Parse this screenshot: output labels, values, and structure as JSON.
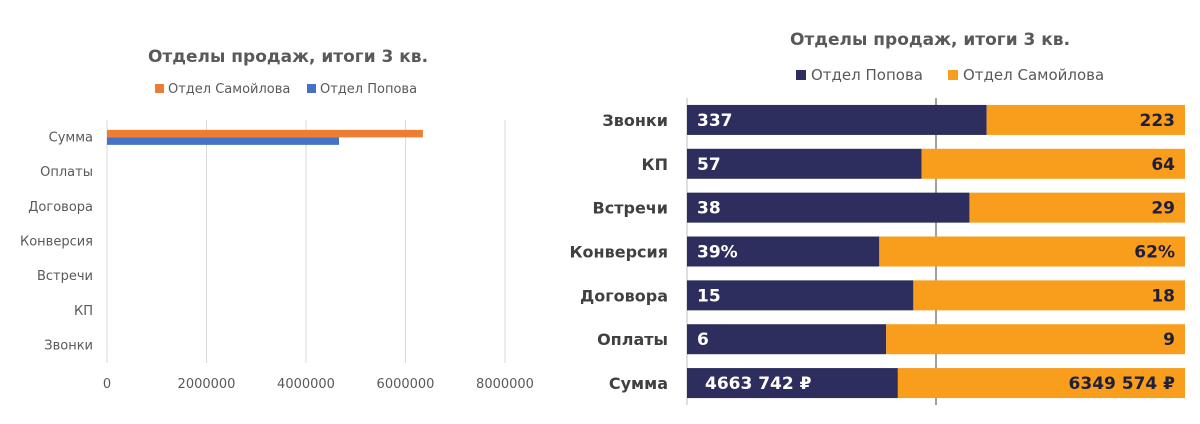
{
  "chart_data": [
    {
      "type": "bar",
      "orientation": "horizontal",
      "title": "Отделы продаж, итоги 3 кв.",
      "categories": [
        "Звонки",
        "КП",
        "Встречи",
        "Конверсия",
        "Договора",
        "Оплаты",
        "Сумма"
      ],
      "series": [
        {
          "name": "Отдел Самойлова",
          "color": "#ED7D31",
          "values": [
            223,
            64,
            29,
            0.62,
            18,
            9,
            6349574
          ]
        },
        {
          "name": "Отдел Попова",
          "color": "#4472C4",
          "values": [
            337,
            57,
            38,
            0.39,
            15,
            6,
            4663742
          ]
        }
      ],
      "legend_order": [
        "Отдел Самойлова",
        "Отдел Попова"
      ],
      "x_ticks": [
        "0",
        "2000000",
        "4000000",
        "6000000",
        "8000000"
      ],
      "xlim": [
        0,
        8000000
      ],
      "grid": "vertical",
      "legend": "top"
    },
    {
      "type": "bar",
      "orientation": "horizontal",
      "stacked": "100%",
      "title": "Отделы продаж, итоги 3 кв.",
      "categories": [
        "Звонки",
        "КП",
        "Встречи",
        "Конверсия",
        "Договора",
        "Оплаты",
        "Сумма"
      ],
      "series": [
        {
          "name": "Отдел Попова",
          "color": "#2E2E5E",
          "values": [
            337,
            57,
            38,
            0.39,
            15,
            6,
            4663742
          ],
          "labels": [
            "337",
            "57",
            "38",
            "39%",
            "15",
            "6",
            "4663 742 ₽"
          ]
        },
        {
          "name": "Отдел Самойлова",
          "color": "#F99D1C",
          "values": [
            223,
            64,
            29,
            0.62,
            18,
            9,
            6349574
          ],
          "labels": [
            "223",
            "64",
            "29",
            "62%",
            "18",
            "9",
            "6349 574 ₽"
          ]
        }
      ],
      "legend": "top",
      "grid": "none"
    }
  ]
}
